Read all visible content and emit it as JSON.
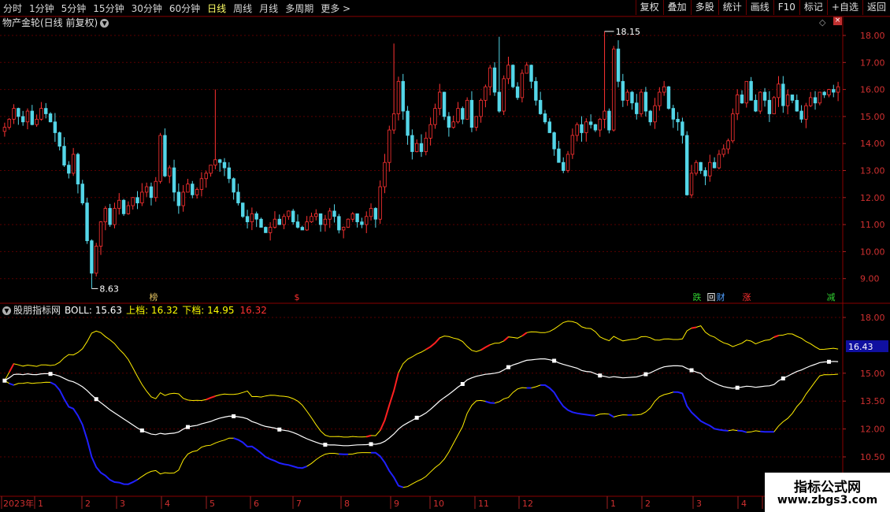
{
  "toolbar": {
    "periods": [
      "分时",
      "1分钟",
      "5分钟",
      "15分钟",
      "30分钟",
      "60分钟",
      "日线",
      "周线",
      "月线",
      "多周期",
      "更多 >"
    ],
    "active_period": "日线",
    "actions": [
      "复权",
      "叠加",
      "多股",
      "统计",
      "画线",
      "F10",
      "标记",
      "+自选",
      "返回"
    ]
  },
  "main_panel": {
    "title": "物产金轮(日线 前复权)",
    "price_axis": [
      "18.00",
      "17.00",
      "16.00",
      "15.00",
      "14.00",
      "13.00",
      "12.00",
      "11.00",
      "10.00",
      "9.00"
    ],
    "high_label": "18.15",
    "low_label": "8.63",
    "event_markers": [
      {
        "text": "榜",
        "color": "#e0c060"
      },
      {
        "text": "$",
        "color": "#ff3030"
      },
      {
        "text": "跌",
        "color": "#30d030"
      },
      {
        "text": "回",
        "color": "#ffffff"
      },
      {
        "text": "财",
        "color": "#50a0ff"
      },
      {
        "text": "涨",
        "color": "#ff3030"
      },
      {
        "text": "减",
        "color": "#30d030"
      }
    ]
  },
  "indicator_panel": {
    "name": "股朋指标网",
    "boll_label": "BOLL: 15.63",
    "upper_label": "上档: 16.32",
    "lower_label": "下档: 14.95",
    "extra_value": "16.32",
    "axis": [
      "18.00",
      "15.00",
      "13.50",
      "12.00",
      "10.50"
    ],
    "current_value": "16.43"
  },
  "date_axis": [
    "2023年",
    "1",
    "2",
    "3",
    "4",
    "5",
    "6",
    "7",
    "8",
    "9",
    "10",
    "11",
    "12",
    "1",
    "2",
    "3",
    "4",
    "5",
    "6"
  ],
  "chart_data": {
    "type": "candlestick+bollinger",
    "title": "物产金轮(日线 前复权)",
    "ylim": [
      8.4,
      18.5
    ],
    "close": [
      14.6,
      14.9,
      15.3,
      15.0,
      14.8,
      15.2,
      14.7,
      14.9,
      15.3,
      15.1,
      14.8,
      14.4,
      13.9,
      13.2,
      12.9,
      13.6,
      12.5,
      11.8,
      10.4,
      9.2,
      10.2,
      11.1,
      11.6,
      11.0,
      11.6,
      11.9,
      11.4,
      11.7,
      12.0,
      11.8,
      12.2,
      12.4,
      12.0,
      12.6,
      14.3,
      12.8,
      13.1,
      12.2,
      11.7,
      12.2,
      12.5,
      12.1,
      12.3,
      12.7,
      12.9,
      13.2,
      13.4,
      13.3,
      13.1,
      12.7,
      12.2,
      11.8,
      11.3,
      11.1,
      11.4,
      11.2,
      10.9,
      10.7,
      10.9,
      11.2,
      11.0,
      11.3,
      11.5,
      11.1,
      10.9,
      10.8,
      11.1,
      11.3,
      11.4,
      11.0,
      11.2,
      11.5,
      11.3,
      10.8,
      10.9,
      11.2,
      11.4,
      11.1,
      11.0,
      11.3,
      11.6,
      11.2,
      12.4,
      13.3,
      14.5,
      15.1,
      16.3,
      15.2,
      14.3,
      13.7,
      14.0,
      13.7,
      14.2,
      14.7,
      15.3,
      15.9,
      15.0,
      14.6,
      14.8,
      15.3,
      14.9,
      15.6,
      14.6,
      15.0,
      15.6,
      16.1,
      16.8,
      15.9,
      15.2,
      16.4,
      16.9,
      16.1,
      15.7,
      16.6,
      16.9,
      16.3,
      15.6,
      15.1,
      14.8,
      14.4,
      13.8,
      13.3,
      13.0,
      13.6,
      14.3,
      14.7,
      14.4,
      14.8,
      14.7,
      14.5,
      14.9,
      15.2,
      14.5,
      17.5,
      16.3,
      15.6,
      15.9,
      15.5,
      15.1,
      15.9,
      15.2,
      14.8,
      15.4,
      15.9,
      16.1,
      15.3,
      14.9,
      14.8,
      14.3,
      12.1,
      12.9,
      13.3,
      13.0,
      12.8,
      13.3,
      13.1,
      13.6,
      13.8,
      14.1,
      15.1,
      15.8,
      15.5,
      16.3,
      15.6,
      15.2,
      15.9,
      15.6,
      15.1,
      15.7,
      16.2,
      15.4,
      15.8,
      15.6,
      15.2,
      14.9,
      15.4,
      15.7,
      15.5,
      15.9,
      15.8,
      16.0,
      15.9,
      16.1
    ]
  }
}
